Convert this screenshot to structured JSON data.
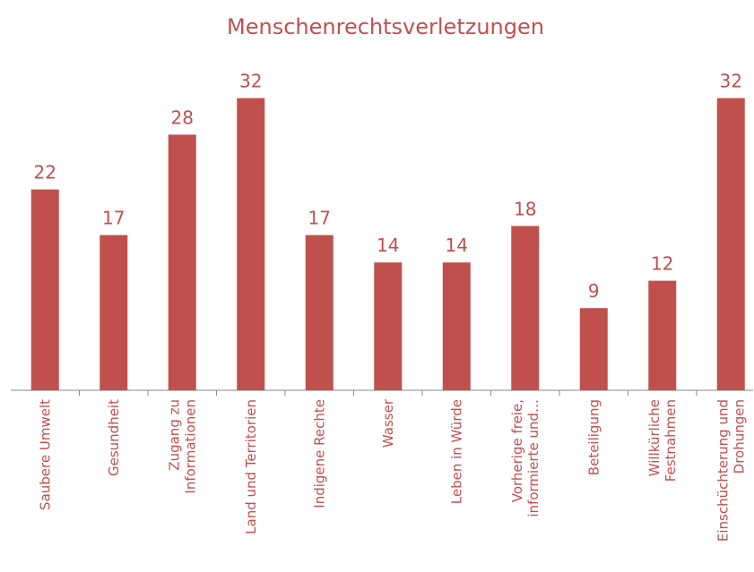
{
  "chart_data": {
    "type": "bar",
    "title": "Menschenrechtsverletzungen",
    "categories": [
      "Saubere Umwelt",
      "Gesundheit",
      "Zugang zu\nInformationen",
      "Land und Territorien",
      "Indigene Rechte",
      "Wasser",
      "Leben in Würde",
      "Vorherige freie,\ninformierte und…",
      "Beteiligung",
      "Willkürliche\nFestnahmen",
      "Einschüchterung und\nDrohungen"
    ],
    "values": [
      22,
      17,
      28,
      32,
      17,
      14,
      14,
      18,
      9,
      12,
      32
    ],
    "color": "#c0504d"
  }
}
